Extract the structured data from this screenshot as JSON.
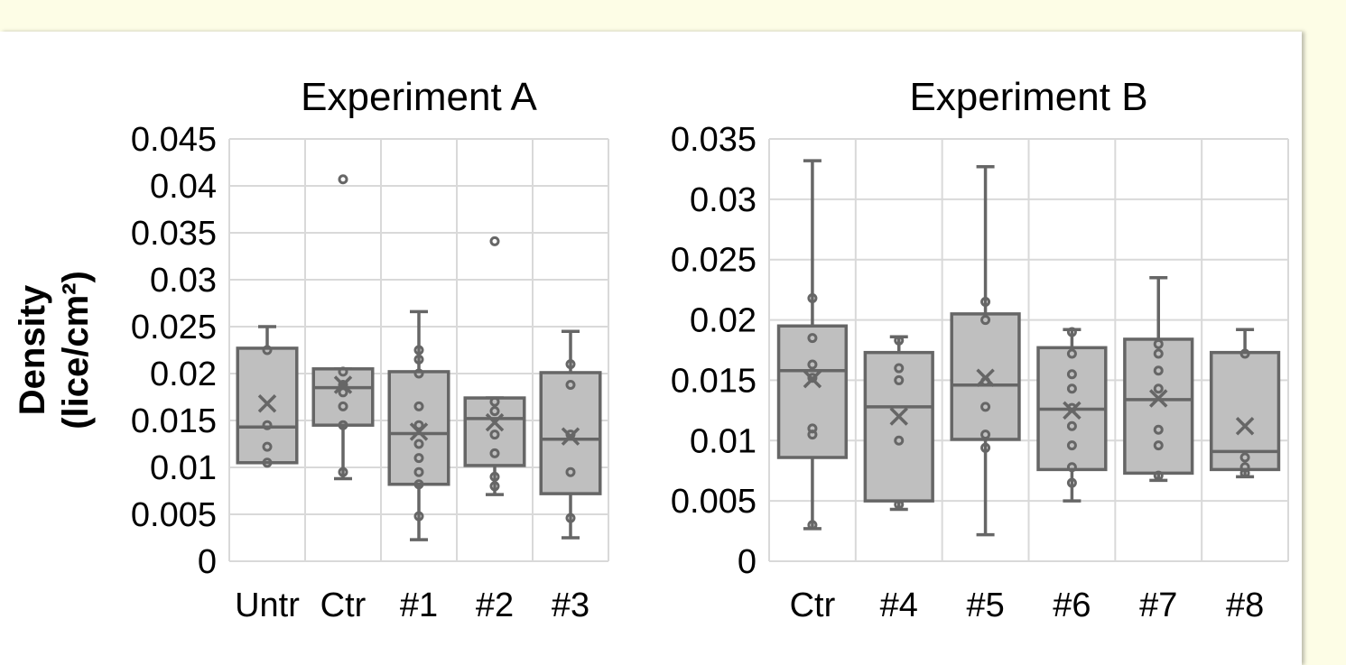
{
  "colors": {
    "page_background": "#fdfde6",
    "panel": "#ffffff",
    "box_fill": "#bfbfbf",
    "box_stroke": "#666666",
    "grid": "#d9d9d9"
  },
  "y_axis_label": {
    "line1": "Density",
    "line2": "(lice/cm²)"
  },
  "chart_data": [
    {
      "type": "box",
      "title": "Experiment A",
      "ylabel": "Density (lice/cm²)",
      "ylim": [
        0,
        0.045
      ],
      "yticks": [
        0,
        0.005,
        0.01,
        0.015,
        0.02,
        0.025,
        0.03,
        0.035,
        0.04,
        0.045
      ],
      "ytick_labels": [
        "0",
        "0.005",
        "0.01",
        "0.015",
        "0.02",
        "0.025",
        "0.03",
        "0.035",
        "0.04",
        "0.045"
      ],
      "grid": true,
      "categories": [
        "Untr",
        "Ctr",
        "#1",
        "#2",
        "#3"
      ],
      "boxes": [
        {
          "whisker_low": 0.0105,
          "q1": 0.0105,
          "median": 0.0143,
          "q3": 0.0227,
          "whisker_high": 0.025,
          "mean": 0.0168,
          "points": [
            0.0105,
            0.0122,
            0.0145,
            0.0225
          ],
          "outliers": []
        },
        {
          "whisker_low": 0.0088,
          "q1": 0.0145,
          "median": 0.0185,
          "q3": 0.0205,
          "whisker_high": 0.0205,
          "mean": 0.0188,
          "points": [
            0.0095,
            0.0145,
            0.0165,
            0.018,
            0.0188,
            0.0202
          ],
          "outliers": [
            0.0407
          ]
        },
        {
          "whisker_low": 0.0023,
          "q1": 0.0082,
          "median": 0.0136,
          "q3": 0.0202,
          "whisker_high": 0.0266,
          "mean": 0.0138,
          "points": [
            0.0048,
            0.0082,
            0.0095,
            0.011,
            0.0125,
            0.0145,
            0.0165,
            0.02,
            0.0215,
            0.0225
          ],
          "outliers": []
        },
        {
          "whisker_low": 0.0071,
          "q1": 0.0102,
          "median": 0.0152,
          "q3": 0.0174,
          "whisker_high": 0.0174,
          "mean": 0.0148,
          "points": [
            0.008,
            0.009,
            0.0115,
            0.0135,
            0.016,
            0.017
          ],
          "outliers": [
            0.0341
          ]
        },
        {
          "whisker_low": 0.0025,
          "q1": 0.0072,
          "median": 0.013,
          "q3": 0.0201,
          "whisker_high": 0.0245,
          "mean": 0.0133,
          "points": [
            0.0046,
            0.0095,
            0.0135,
            0.0188,
            0.021
          ],
          "outliers": []
        }
      ]
    },
    {
      "type": "box",
      "title": "Experiment B",
      "ylim": [
        0,
        0.035
      ],
      "yticks": [
        0,
        0.005,
        0.01,
        0.015,
        0.02,
        0.025,
        0.03,
        0.035
      ],
      "ytick_labels": [
        "0",
        "0.005",
        "0.01",
        "0.015",
        "0.02",
        "0.025",
        "0.03",
        "0.035"
      ],
      "grid": true,
      "categories": [
        "Ctr",
        "#4",
        "#5",
        "#6",
        "#7",
        "#8"
      ],
      "boxes": [
        {
          "whisker_low": 0.0027,
          "q1": 0.0086,
          "median": 0.0158,
          "q3": 0.0195,
          "whisker_high": 0.0332,
          "mean": 0.0151,
          "points": [
            0.003,
            0.0105,
            0.011,
            0.0152,
            0.0163,
            0.0185,
            0.0218
          ],
          "outliers": []
        },
        {
          "whisker_low": 0.0043,
          "q1": 0.005,
          "median": 0.0128,
          "q3": 0.0173,
          "whisker_high": 0.0186,
          "mean": 0.012,
          "points": [
            0.0047,
            0.01,
            0.015,
            0.016,
            0.0183
          ],
          "outliers": []
        },
        {
          "whisker_low": 0.0022,
          "q1": 0.0101,
          "median": 0.0146,
          "q3": 0.0205,
          "whisker_high": 0.0327,
          "mean": 0.0152,
          "points": [
            0.0094,
            0.0105,
            0.0128,
            0.0149,
            0.02,
            0.0215
          ],
          "outliers": []
        },
        {
          "whisker_low": 0.005,
          "q1": 0.0076,
          "median": 0.0126,
          "q3": 0.0177,
          "whisker_high": 0.0192,
          "mean": 0.0125,
          "points": [
            0.0065,
            0.0078,
            0.0096,
            0.0112,
            0.0127,
            0.0143,
            0.0155,
            0.0172,
            0.019
          ],
          "outliers": []
        },
        {
          "whisker_low": 0.0067,
          "q1": 0.0073,
          "median": 0.0134,
          "q3": 0.0184,
          "whisker_high": 0.0235,
          "mean": 0.0135,
          "points": [
            0.0071,
            0.0096,
            0.0109,
            0.0143,
            0.0158,
            0.0172,
            0.018
          ],
          "outliers": []
        },
        {
          "whisker_low": 0.007,
          "q1": 0.0076,
          "median": 0.0091,
          "q3": 0.0173,
          "whisker_high": 0.0192,
          "mean": 0.0112,
          "points": [
            0.0073,
            0.0078,
            0.0086,
            0.0172
          ],
          "outliers": []
        }
      ]
    }
  ]
}
